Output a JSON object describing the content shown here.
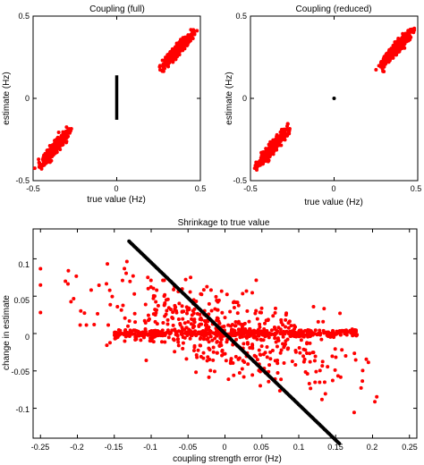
{
  "chart_data": [
    {
      "type": "scatter",
      "title": "Coupling (full)",
      "xlabel": "true value (Hz)",
      "ylabel": "estimate (Hz)",
      "xlim": [
        -0.5,
        0.5
      ],
      "ylim": [
        -0.5,
        0.5
      ],
      "xticks": [
        "-0.5",
        "0",
        "0.5"
      ],
      "yticks": [
        "-0.5",
        "0",
        "0.5"
      ],
      "xtick_values": [
        -0.5,
        0,
        0.5
      ],
      "ytick_values": [
        -0.5,
        0,
        0.5
      ],
      "series": [
        {
          "color": "#ff0000",
          "clusters": [
            {
              "x_range": [
                -0.49,
                -0.25
              ],
              "y_range": [
                -0.45,
                -0.15
              ],
              "points": 450,
              "diagonal": true
            },
            {
              "x_range": [
                0.24,
                0.49
              ],
              "y_range": [
                0.15,
                0.44
              ],
              "points": 450,
              "diagonal": true
            }
          ]
        },
        {
          "color": "#000000",
          "vertical_line": {
            "x": 0,
            "y_range": [
              -0.13,
              0.14
            ]
          }
        }
      ]
    },
    {
      "type": "scatter",
      "title": "Coupling (reduced)",
      "xlabel": "true value (Hz)",
      "ylabel": "estimate (Hz)",
      "xlim": [
        -0.5,
        0.5
      ],
      "ylim": [
        -0.5,
        0.5
      ],
      "xticks": [
        "-0.5",
        "0",
        "0.5"
      ],
      "yticks": [
        "-0.5",
        "0",
        "0.5"
      ],
      "xtick_values": [
        -0.5,
        0,
        0.5
      ],
      "ytick_values": [
        -0.5,
        0,
        0.5
      ],
      "series": [
        {
          "color": "#ff0000",
          "clusters": [
            {
              "x_range": [
                -0.49,
                -0.25
              ],
              "y_range": [
                -0.45,
                -0.15
              ],
              "points": 450,
              "diagonal": true
            },
            {
              "x_range": [
                0.24,
                0.49
              ],
              "y_range": [
                0.15,
                0.44
              ],
              "points": 450,
              "diagonal": true
            }
          ]
        },
        {
          "color": "#000000",
          "points": [
            [
              0,
              0
            ]
          ]
        }
      ]
    },
    {
      "type": "scatter",
      "title": "Shrinkage to true value",
      "xlabel": "coupling strength error (Hz)",
      "ylabel": "change in estimate",
      "xlim": [
        -0.26,
        0.26
      ],
      "ylim": [
        -0.14,
        0.14
      ],
      "xticks": [
        "-0.25",
        "-0.2",
        "-0.15",
        "-0.1",
        "-0.05",
        "0",
        "0.05",
        "0.1",
        "0.15",
        "0.2",
        "0.25"
      ],
      "xtick_values": [
        -0.25,
        -0.2,
        -0.15,
        -0.1,
        -0.05,
        0,
        0.05,
        0.1,
        0.15,
        0.2,
        0.25
      ],
      "yticks": [
        "-0.1",
        "-0.05",
        "0",
        "0.05",
        "0.1"
      ],
      "ytick_values": [
        -0.1,
        -0.05,
        0,
        0.05,
        0.1
      ],
      "series": [
        {
          "color": "#000000",
          "line": {
            "x_range": [
              -0.13,
              0.155
            ],
            "slope": -0.95
          }
        },
        {
          "color": "#ff0000",
          "band_points": 450,
          "spread_points": 520
        }
      ]
    }
  ]
}
